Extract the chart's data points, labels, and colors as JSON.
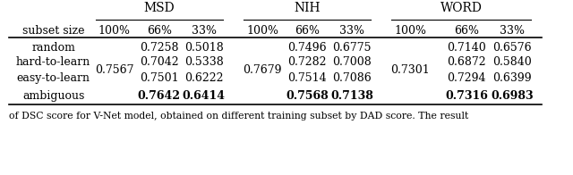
{
  "group_headers": [
    "MSD",
    "NIH",
    "WORD"
  ],
  "col_headers": [
    "100%",
    "66%",
    "33%",
    "100%",
    "66%",
    "33%",
    "100%",
    "66%",
    "33%"
  ],
  "row_label": "subset size",
  "rows": [
    {
      "name": "random",
      "values": [
        "",
        "0.7258",
        "0.5018",
        "",
        "0.7496",
        "0.6775",
        "",
        "0.7140",
        "0.6576"
      ],
      "bold": [
        false,
        false,
        false,
        false,
        false,
        false,
        false,
        false,
        false
      ]
    },
    {
      "name": "hard-to-learn",
      "values": [
        "0.7567",
        "0.7042",
        "0.5338",
        "0.7679",
        "0.7282",
        "0.7008",
        "0.7301",
        "0.6872",
        "0.5840"
      ],
      "bold": [
        false,
        false,
        false,
        false,
        false,
        false,
        false,
        false,
        false
      ]
    },
    {
      "name": "easy-to-learn",
      "values": [
        "",
        "0.7501",
        "0.6222",
        "",
        "0.7514",
        "0.7086",
        "",
        "0.7294",
        "0.6399"
      ],
      "bold": [
        false,
        false,
        false,
        false,
        false,
        false,
        false,
        false,
        false
      ]
    },
    {
      "name": "ambiguous",
      "values": [
        "",
        "0.7642",
        "0.6414",
        "",
        "0.7568",
        "0.7138",
        "",
        "0.7316",
        "0.6983"
      ],
      "bold": [
        false,
        true,
        true,
        false,
        true,
        true,
        false,
        true,
        true
      ]
    }
  ],
  "footer": "of DSC score for V-Net model, obtained on different training subset by DAD score. The result",
  "background_color": "#ffffff",
  "font_size": 9.0,
  "header_font_size": 10.0
}
